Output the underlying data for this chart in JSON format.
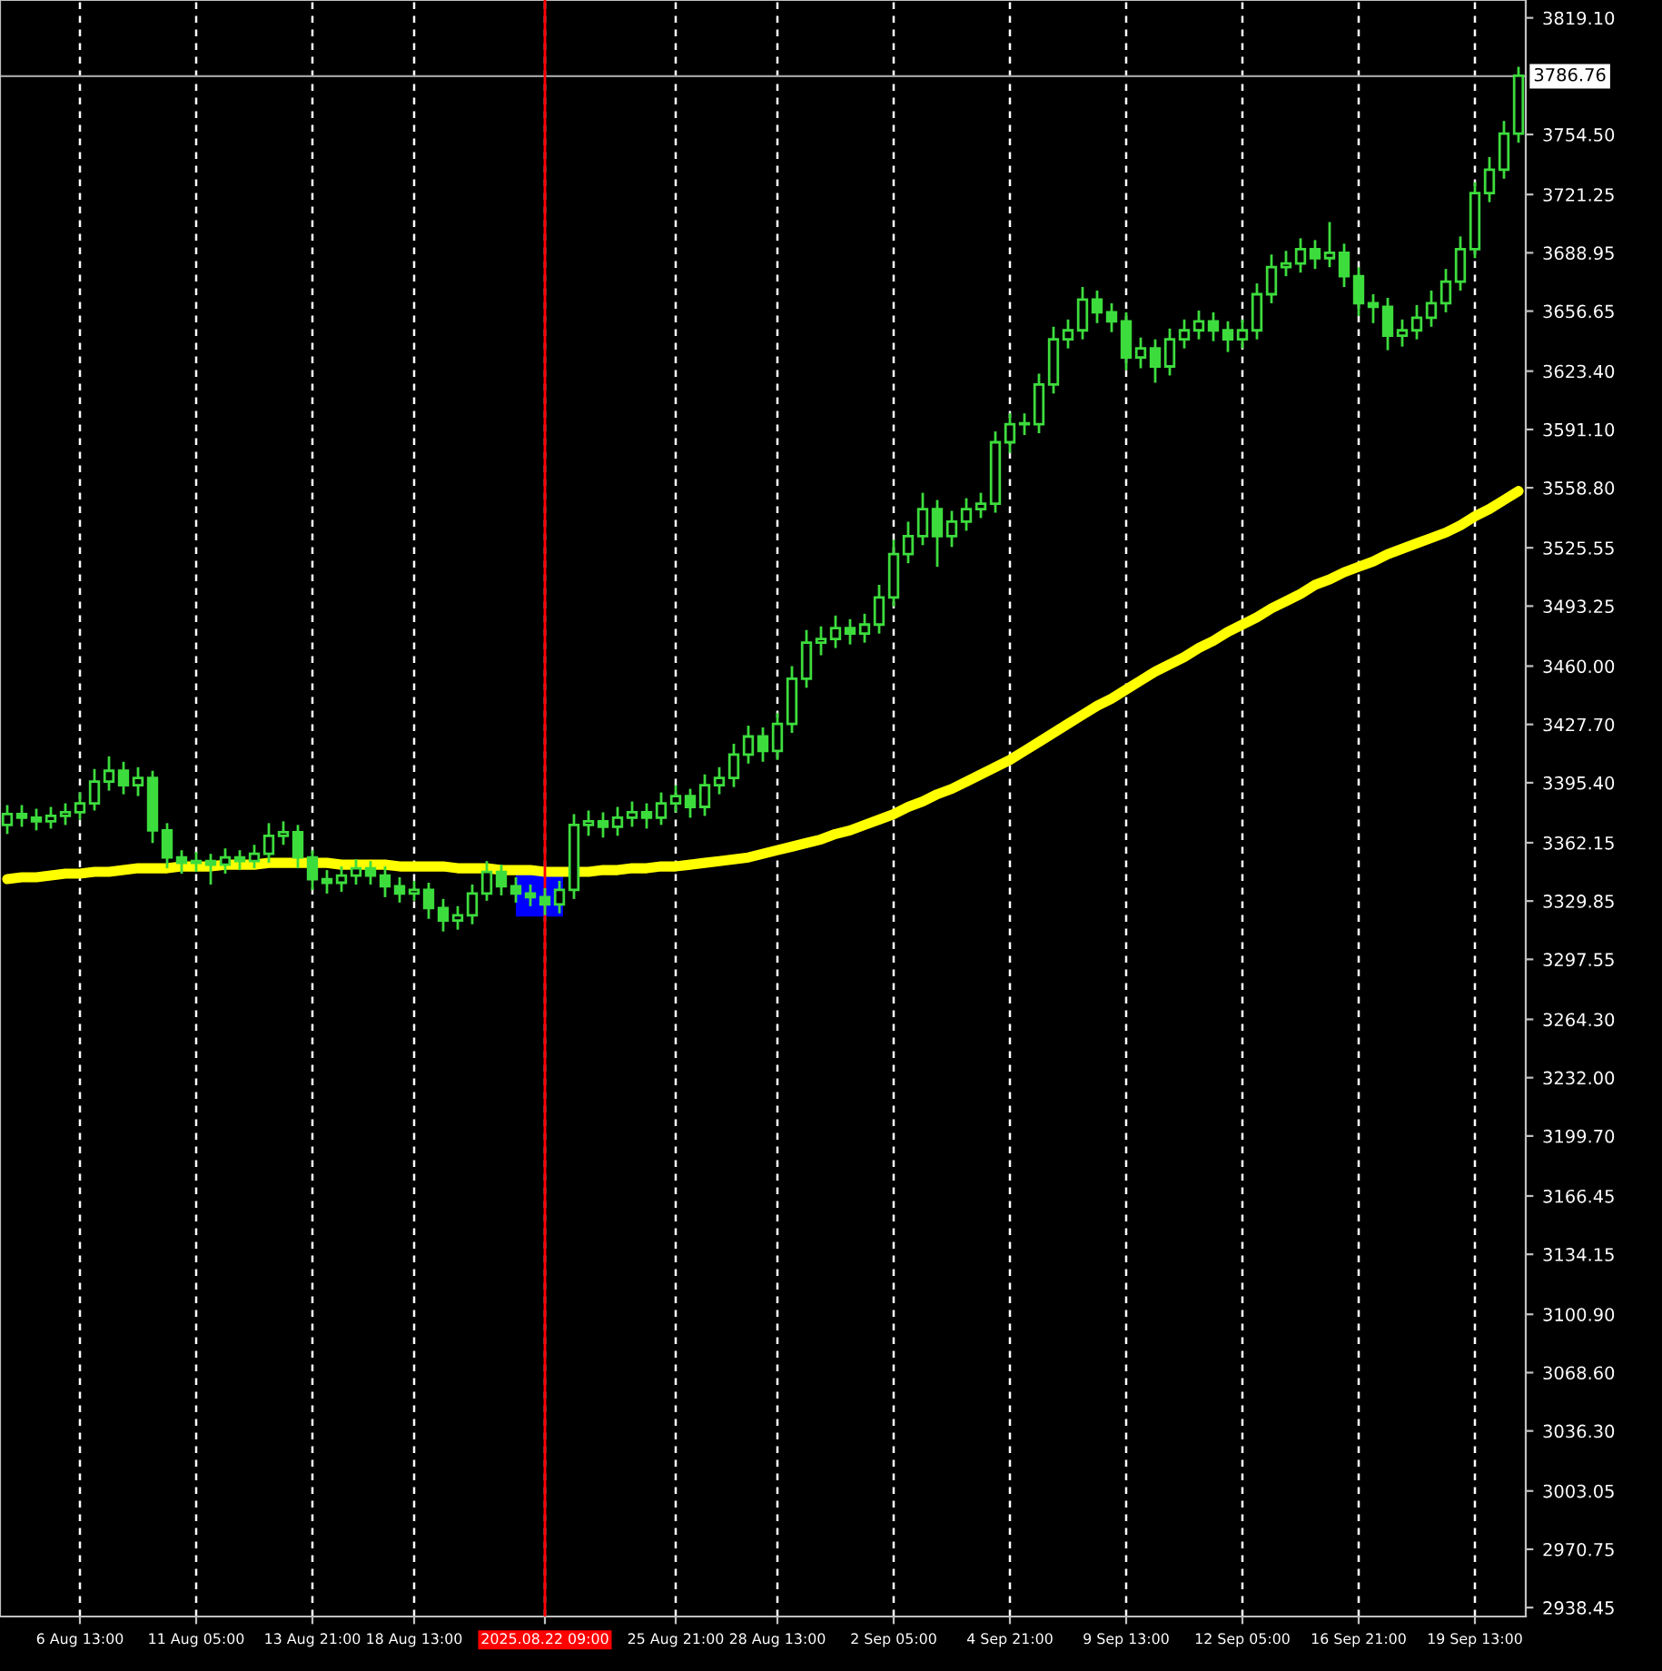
{
  "chart_data": {
    "type": "candlestick",
    "color": "#3ddc3d",
    "categories": [
      null,
      null,
      null,
      null,
      null,
      "6 Aug 13:00",
      null,
      null,
      null,
      null,
      null,
      null,
      null,
      "11 Aug 05:00",
      null,
      null,
      null,
      null,
      null,
      null,
      null,
      "13 Aug 21:00",
      null,
      null,
      null,
      null,
      null,
      null,
      "18 Aug 13:00",
      null,
      null,
      null,
      null,
      null,
      null,
      null,
      null,
      "2025.08.22 09:00",
      null,
      null,
      null,
      null,
      null,
      null,
      null,
      null,
      "25 Aug 21:00",
      null,
      null,
      null,
      null,
      null,
      null,
      "28 Aug 13:00",
      null,
      null,
      null,
      null,
      null,
      null,
      null,
      "2 Sep 05:00",
      null,
      null,
      null,
      null,
      null,
      null,
      null,
      "4 Sep 21:00",
      null,
      null,
      null,
      null,
      null,
      null,
      null,
      "9 Sep 13:00",
      null,
      null,
      null,
      null,
      null,
      null,
      null,
      "12 Sep 05:00",
      null,
      null,
      null,
      null,
      null,
      null,
      null,
      "16 Sep 21:00",
      null,
      null,
      null,
      null,
      null,
      null,
      null,
      "19 Sep 13:00",
      null,
      null,
      null
    ],
    "ohlc": [
      [
        3372,
        3383,
        3367,
        3378
      ],
      [
        3378,
        3383,
        3371,
        3376
      ],
      [
        3376,
        3381,
        3369,
        3374
      ],
      [
        3374,
        3382,
        3370,
        3377
      ],
      [
        3377,
        3384,
        3372,
        3379
      ],
      [
        3379,
        3390,
        3375,
        3384
      ],
      [
        3384,
        3403,
        3380,
        3396
      ],
      [
        3396,
        3410,
        3391,
        3402
      ],
      [
        3402,
        3407,
        3389,
        3394
      ],
      [
        3394,
        3404,
        3388,
        3398
      ],
      [
        3398,
        3402,
        3362,
        3369
      ],
      [
        3369,
        3373,
        3348,
        3354
      ],
      [
        3354,
        3358,
        3345,
        3351
      ],
      [
        3351,
        3357,
        3346,
        3352
      ],
      [
        3352,
        3356,
        3339,
        3350
      ],
      [
        3350,
        3359,
        3345,
        3354
      ],
      [
        3354,
        3358,
        3347,
        3352
      ],
      [
        3352,
        3361,
        3348,
        3356
      ],
      [
        3356,
        3373,
        3351,
        3366
      ],
      [
        3366,
        3374,
        3361,
        3368
      ],
      [
        3368,
        3372,
        3348,
        3354
      ],
      [
        3354,
        3358,
        3336,
        3342
      ],
      [
        3342,
        3347,
        3334,
        3340
      ],
      [
        3340,
        3349,
        3335,
        3344
      ],
      [
        3344,
        3353,
        3339,
        3348
      ],
      [
        3348,
        3352,
        3339,
        3344
      ],
      [
        3344,
        3349,
        3332,
        3338
      ],
      [
        3338,
        3343,
        3329,
        3334
      ],
      [
        3334,
        3341,
        3330,
        3336
      ],
      [
        3336,
        3340,
        3320,
        3326
      ],
      [
        3326,
        3331,
        3313,
        3319
      ],
      [
        3319,
        3327,
        3314,
        3322
      ],
      [
        3322,
        3339,
        3317,
        3334
      ],
      [
        3334,
        3352,
        3330,
        3346
      ],
      [
        3346,
        3350,
        3333,
        3338
      ],
      [
        3338,
        3343,
        3329,
        3334
      ],
      [
        3334,
        3339,
        3327,
        3332
      ],
      [
        3332,
        3337,
        3322,
        3328
      ],
      [
        3328,
        3341,
        3323,
        3336
      ],
      [
        3336,
        3378,
        3331,
        3372
      ],
      [
        3372,
        3380,
        3366,
        3374
      ],
      [
        3374,
        3379,
        3365,
        3371
      ],
      [
        3371,
        3382,
        3366,
        3376
      ],
      [
        3376,
        3385,
        3371,
        3379
      ],
      [
        3379,
        3384,
        3370,
        3376
      ],
      [
        3376,
        3390,
        3372,
        3384
      ],
      [
        3384,
        3394,
        3379,
        3388
      ],
      [
        3388,
        3392,
        3376,
        3382
      ],
      [
        3382,
        3400,
        3377,
        3394
      ],
      [
        3394,
        3404,
        3389,
        3398
      ],
      [
        3398,
        3417,
        3393,
        3411
      ],
      [
        3411,
        3427,
        3406,
        3421
      ],
      [
        3421,
        3426,
        3407,
        3413
      ],
      [
        3413,
        3434,
        3408,
        3428
      ],
      [
        3428,
        3460,
        3423,
        3453
      ],
      [
        3453,
        3480,
        3448,
        3473
      ],
      [
        3473,
        3482,
        3466,
        3475
      ],
      [
        3475,
        3488,
        3470,
        3481
      ],
      [
        3481,
        3486,
        3472,
        3478
      ],
      [
        3478,
        3489,
        3473,
        3483
      ],
      [
        3483,
        3505,
        3478,
        3498
      ],
      [
        3498,
        3530,
        3493,
        3522
      ],
      [
        3522,
        3540,
        3517,
        3532
      ],
      [
        3532,
        3556,
        3527,
        3547
      ],
      [
        3547,
        3552,
        3515,
        3532
      ],
      [
        3532,
        3546,
        3526,
        3540
      ],
      [
        3540,
        3553,
        3535,
        3547
      ],
      [
        3547,
        3556,
        3542,
        3550
      ],
      [
        3550,
        3590,
        3545,
        3584
      ],
      [
        3584,
        3600,
        3578,
        3594
      ],
      [
        3594,
        3600,
        3588,
        3594
      ],
      [
        3594,
        3622,
        3589,
        3616
      ],
      [
        3616,
        3648,
        3611,
        3641
      ],
      [
        3641,
        3652,
        3636,
        3646
      ],
      [
        3646,
        3670,
        3641,
        3663
      ],
      [
        3663,
        3668,
        3650,
        3656
      ],
      [
        3656,
        3661,
        3645,
        3651
      ],
      [
        3651,
        3656,
        3624,
        3631
      ],
      [
        3631,
        3642,
        3625,
        3636
      ],
      [
        3636,
        3641,
        3617,
        3626
      ],
      [
        3626,
        3647,
        3621,
        3641
      ],
      [
        3641,
        3652,
        3636,
        3646
      ],
      [
        3646,
        3657,
        3641,
        3651
      ],
      [
        3651,
        3656,
        3640,
        3646
      ],
      [
        3646,
        3651,
        3634,
        3641
      ],
      [
        3641,
        3652,
        3636,
        3646
      ],
      [
        3646,
        3672,
        3641,
        3666
      ],
      [
        3666,
        3688,
        3661,
        3681
      ],
      [
        3681,
        3690,
        3676,
        3683
      ],
      [
        3683,
        3697,
        3678,
        3691
      ],
      [
        3691,
        3696,
        3680,
        3686
      ],
      [
        3686,
        3706,
        3681,
        3689
      ],
      [
        3689,
        3694,
        3670,
        3676
      ],
      [
        3676,
        3681,
        3654,
        3661
      ],
      [
        3661,
        3666,
        3650,
        3659
      ],
      [
        3659,
        3664,
        3635,
        3643
      ],
      [
        3643,
        3652,
        3637,
        3646
      ],
      [
        3646,
        3660,
        3641,
        3653
      ],
      [
        3653,
        3668,
        3648,
        3661
      ],
      [
        3661,
        3680,
        3656,
        3673
      ],
      [
        3673,
        3698,
        3668,
        3691
      ],
      [
        3691,
        3728,
        3686,
        3722
      ],
      [
        3722,
        3742,
        3717,
        3735
      ],
      [
        3735,
        3762,
        3730,
        3755
      ],
      [
        3755,
        3792,
        3750,
        3787
      ]
    ],
    "series": [
      {
        "type": "line",
        "color": "#ffff00",
        "values": [
          3342,
          3343,
          3343,
          3344,
          3345,
          3345,
          3346,
          3346,
          3347,
          3348,
          3348,
          3348,
          3349,
          3349,
          3349,
          3350,
          3350,
          3350,
          3351,
          3351,
          3351,
          3351,
          3351,
          3350,
          3350,
          3350,
          3350,
          3349,
          3349,
          3349,
          3349,
          3348,
          3348,
          3348,
          3347,
          3347,
          3347,
          3346,
          3346,
          3346,
          3346,
          3347,
          3347,
          3348,
          3348,
          3349,
          3349,
          3350,
          3351,
          3352,
          3353,
          3354,
          3356,
          3358,
          3360,
          3362,
          3364,
          3367,
          3369,
          3372,
          3375,
          3378,
          3382,
          3385,
          3389,
          3392,
          3396,
          3400,
          3404,
          3408,
          3413,
          3418,
          3423,
          3428,
          3433,
          3438,
          3442,
          3447,
          3452,
          3457,
          3461,
          3465,
          3470,
          3474,
          3479,
          3483,
          3487,
          3492,
          3496,
          3500,
          3505,
          3508,
          3512,
          3515,
          3518,
          3522,
          3525,
          3528,
          3531,
          3534,
          3538,
          3543,
          3547,
          3552,
          3557
        ]
      }
    ],
    "ylim": [
      2933.5,
      3829.0
    ],
    "yticks": [
      {
        "value": 2938.45,
        "label": "2938.45"
      },
      {
        "value": 2970.75,
        "label": "2970.75"
      },
      {
        "value": 3003.05,
        "label": "3003.05"
      },
      {
        "value": 3036.3,
        "label": "3036.30"
      },
      {
        "value": 3068.6,
        "label": "3068.60"
      },
      {
        "value": 3100.9,
        "label": "3100.90"
      },
      {
        "value": 3134.15,
        "label": "3134.15"
      },
      {
        "value": 3166.45,
        "label": "3166.45"
      },
      {
        "value": 3199.7,
        "label": "3199.70"
      },
      {
        "value": 3232.0,
        "label": "3232.00"
      },
      {
        "value": 3264.3,
        "label": "3264.30"
      },
      {
        "value": 3297.55,
        "label": "3297.55"
      },
      {
        "value": 3329.85,
        "label": "3329.85"
      },
      {
        "value": 3362.15,
        "label": "3362.15"
      },
      {
        "value": 3395.4,
        "label": "3395.40"
      },
      {
        "value": 3427.7,
        "label": "3427.70"
      },
      {
        "value": 3460.0,
        "label": "3460.00"
      },
      {
        "value": 3493.25,
        "label": "3493.25"
      },
      {
        "value": 3525.55,
        "label": "3525.55"
      },
      {
        "value": 3558.8,
        "label": "3558.80"
      },
      {
        "value": 3591.1,
        "label": "3591.10"
      },
      {
        "value": 3623.4,
        "label": "3623.40"
      },
      {
        "value": 3656.65,
        "label": "3656.65"
      },
      {
        "value": 3688.95,
        "label": "3688.95"
      },
      {
        "value": 3721.25,
        "label": "3721.25"
      },
      {
        "value": 3754.5,
        "label": "3754.50"
      },
      {
        "value": 3819.1,
        "label": "3819.10"
      }
    ],
    "ref_lines": [
      {
        "axis": "x",
        "value": "2025.08.22 09:00",
        "color": "#ff0000"
      },
      {
        "axis": "y",
        "value": 3786.76,
        "label": "3786.76",
        "color": "#a0a0a0"
      }
    ],
    "grid": "x"
  }
}
